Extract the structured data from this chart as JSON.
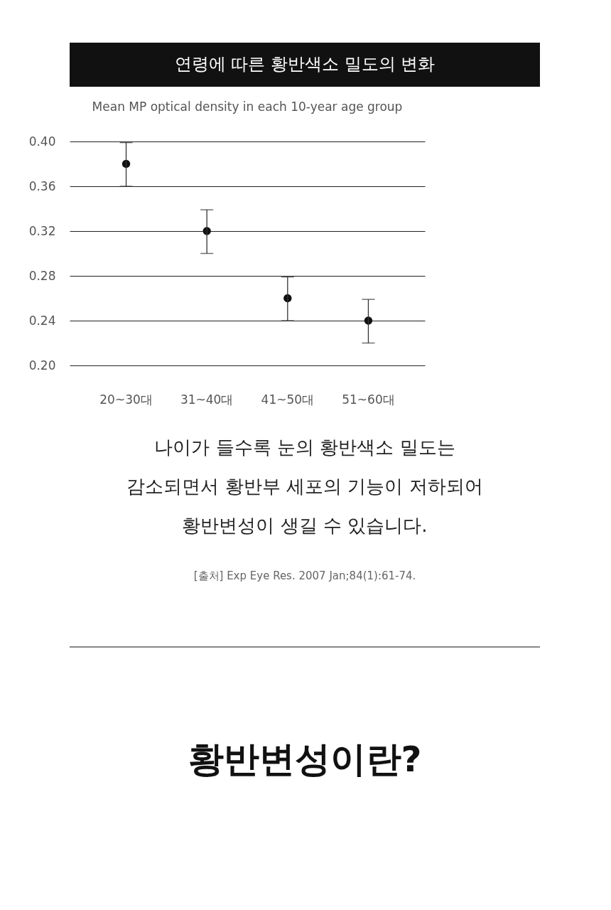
{
  "chart_data": {
    "type": "scatter",
    "title": "연령에 따른 황반색소 밀도의 변화",
    "subtitle": "Mean MP optical density in each 10-year age group",
    "categories": [
      "20~30대",
      "31~40대",
      "41~50대",
      "51~60대"
    ],
    "values": [
      0.38,
      0.32,
      0.26,
      0.24
    ],
    "errors": [
      [
        0.36,
        0.399
      ],
      [
        0.3,
        0.339
      ],
      [
        0.24,
        0.279
      ],
      [
        0.22,
        0.259
      ]
    ],
    "color": "#111111",
    "marker": "circle",
    "ylim": [
      0.2,
      0.4
    ],
    "yticks": [
      {
        "value": 0.2,
        "label": "0.20"
      },
      {
        "value": 0.24,
        "label": "0.24"
      },
      {
        "value": 0.28,
        "label": "0.28"
      },
      {
        "value": 0.32,
        "label": "0.32"
      },
      {
        "value": 0.36,
        "label": "0.36"
      },
      {
        "value": 0.4,
        "label": "0.40"
      }
    ],
    "grid": "y",
    "annotations": [
      "나이가 들수록 눈의 황반색소 밀도는",
      "감소되면서 황반부 세포의 기능이 저하되어",
      "황반변성이 생길 수 있습니다.",
      "[출처] Exp Eye Res. 2007 Jan;84(1):61-74.",
      "황반변성이란?"
    ]
  }
}
